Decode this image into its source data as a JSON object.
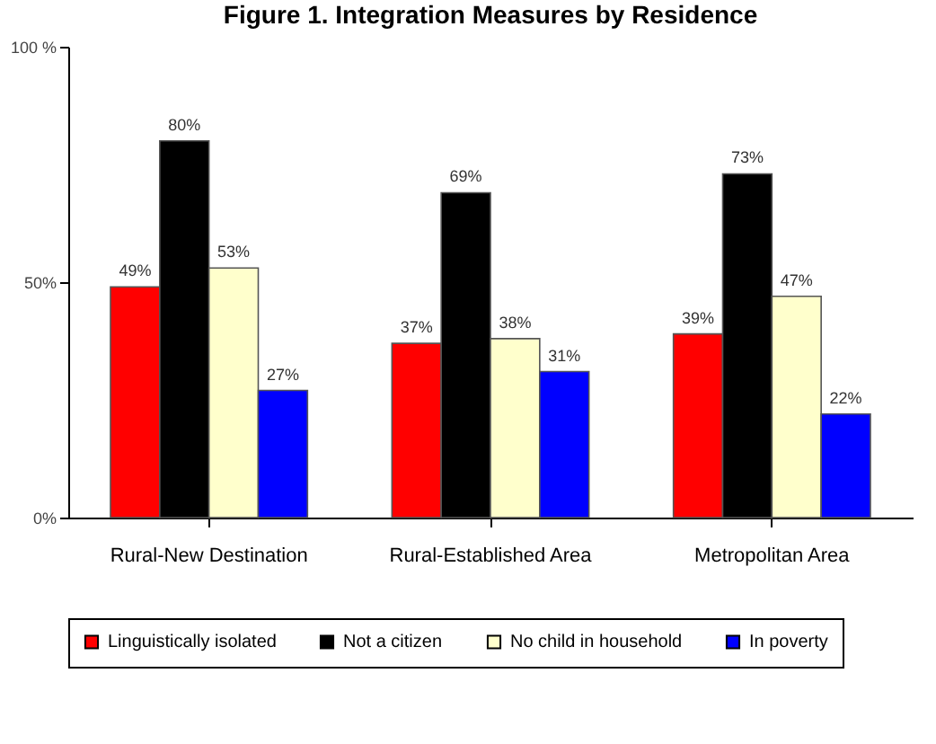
{
  "chart_data": {
    "type": "bar",
    "title": "Figure 1. Integration Measures by Residence",
    "categories": [
      "Rural-New Destination",
      "Rural-Established Area",
      "Metropolitan Area"
    ],
    "series": [
      {
        "name": "Linguistically isolated",
        "color": "#ff0000",
        "values": [
          49,
          37,
          39
        ],
        "value_labels": [
          "49%",
          "37%",
          "39%"
        ]
      },
      {
        "name": "Not a citizen",
        "color": "#000000",
        "values": [
          80,
          69,
          73
        ],
        "value_labels": [
          "80%",
          "69%",
          "73%"
        ]
      },
      {
        "name": "No child in household",
        "color": "#ffffcc",
        "values": [
          53,
          38,
          47
        ],
        "value_labels": [
          "53%",
          "38%",
          "47%"
        ]
      },
      {
        "name": "In poverty",
        "color": "#0000ff",
        "values": [
          27,
          31,
          22
        ],
        "value_labels": [
          "27%",
          "31%",
          "22%"
        ]
      }
    ],
    "ylim": [
      0,
      100
    ],
    "yticks": [
      {
        "value": 0,
        "label": "0%"
      },
      {
        "value": 50,
        "label": "50%"
      },
      {
        "value": 100,
        "label": "100 %"
      }
    ],
    "grid": false,
    "legend": "bottom"
  }
}
